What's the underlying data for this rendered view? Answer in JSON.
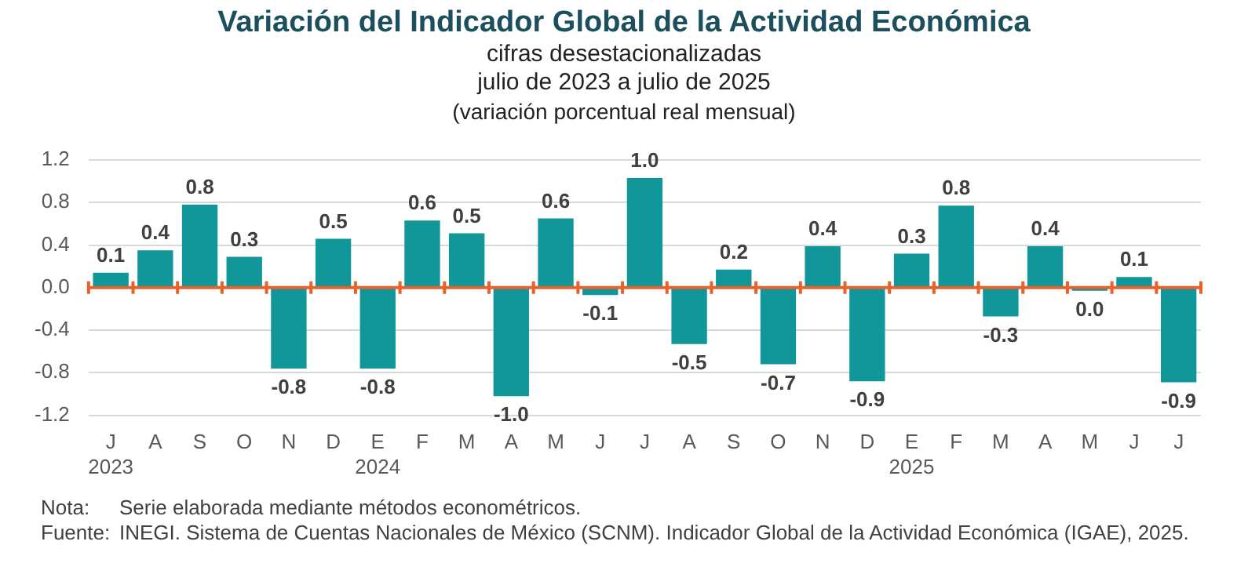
{
  "chart_data": {
    "type": "bar",
    "title": "Variación del Indicador Global de la Actividad Económica",
    "subtitle": "cifras desestacionalizadas\njulio de 2023 a julio de 2025\n(variación porcentual real mensual)",
    "categories": [
      "J\n2023",
      "A",
      "S",
      "O",
      "N",
      "D",
      "E\n2024",
      "F",
      "M",
      "A",
      "M",
      "J",
      "J",
      "A",
      "S",
      "O",
      "N",
      "D",
      "E\n2025",
      "F",
      "M",
      "A",
      "M",
      "J",
      "J"
    ],
    "values": [
      0.14,
      0.35,
      0.78,
      0.29,
      -0.76,
      0.46,
      -0.76,
      0.63,
      0.51,
      -1.02,
      0.65,
      -0.07,
      1.03,
      -0.53,
      0.17,
      -0.72,
      0.39,
      -0.88,
      0.32,
      0.77,
      -0.27,
      0.39,
      -0.03,
      0.1,
      -0.89
    ],
    "value_labels": [
      "0.1",
      "0.4",
      "0.8",
      "0.3",
      "-0.8",
      "0.5",
      "-0.8",
      "0.6",
      "0.5",
      "-1.0",
      "0.6",
      "-0.1",
      "1.0",
      "-0.5",
      "0.2",
      "-0.7",
      "0.4",
      "-0.9",
      "0.3",
      "0.8",
      "-0.3",
      "0.4",
      "0.0",
      "0.1",
      "-0.9"
    ],
    "color": "#11969a",
    "ylim": [
      -1.2,
      1.2
    ],
    "yticks": [
      {
        "value": -1.2,
        "label": "-1.2"
      },
      {
        "value": -0.8,
        "label": "-0.8"
      },
      {
        "value": -0.4,
        "label": "-0.4"
      },
      {
        "value": 0,
        "label": "0.0"
      },
      {
        "value": 0.4,
        "label": "0.4"
      },
      {
        "value": 0.8,
        "label": "0.8"
      },
      {
        "value": 1.2,
        "label": "1.2"
      }
    ],
    "grid": "y",
    "legend": false,
    "ref_lines": [
      {
        "axis": "y",
        "value": 0,
        "color": "#e8602a"
      }
    ],
    "annotations": [
      "Nota:\tSerie elaborada mediante métodos econométricos.",
      "Fuente:\tINEGI. Sistema de Cuentas Nacionales de México (SCNM). Indicador Global de la Actividad Económica (IGAE), 2025."
    ]
  }
}
